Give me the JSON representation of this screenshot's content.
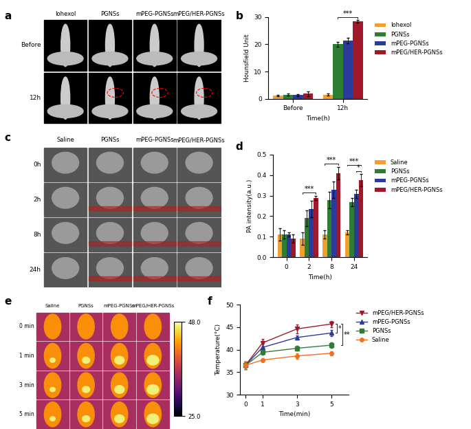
{
  "chart_data": [
    {
      "panel": "b",
      "type": "bar",
      "y_label": "Hounsfield Unit",
      "x_label": "Time(h)",
      "categories": [
        "Before",
        "12h"
      ],
      "series": [
        {
          "name": "Iohexol",
          "color": "#f0a030",
          "values": [
            1.2,
            1.5
          ],
          "errors": [
            0.3,
            0.3
          ]
        },
        {
          "name": "PGNSs",
          "color": "#2e7d32",
          "values": [
            1.5,
            20.0
          ],
          "errors": [
            0.4,
            1.0
          ]
        },
        {
          "name": "mPEG-PGNSs",
          "color": "#2a3b9a",
          "values": [
            1.3,
            21.5
          ],
          "errors": [
            0.3,
            1.0
          ]
        },
        {
          "name": "mPEG/HER-PGNSs",
          "color": "#a0192a",
          "values": [
            1.8,
            28.5
          ],
          "errors": [
            0.8,
            0.5
          ]
        }
      ],
      "ylim": [
        0,
        30
      ],
      "yticks": [
        0,
        10,
        20,
        30
      ],
      "legend": "right",
      "annotations": [
        {
          "text": "***",
          "category": "12h",
          "from": "PGNSs",
          "to": "mPEG/HER-PGNSs"
        }
      ]
    },
    {
      "panel": "d",
      "type": "bar",
      "y_label": "PA intensity(a.u.)",
      "x_label": "Time(h)",
      "categories": [
        "0",
        "2",
        "8",
        "24"
      ],
      "series": [
        {
          "name": "Saline",
          "color": "#f0a030",
          "values": [
            0.11,
            0.09,
            0.11,
            0.12
          ],
          "errors": [
            0.03,
            0.03,
            0.02,
            0.01
          ]
        },
        {
          "name": "PGNSs",
          "color": "#2e7d32",
          "values": [
            0.11,
            0.19,
            0.28,
            0.27
          ],
          "errors": [
            0.02,
            0.04,
            0.04,
            0.02
          ]
        },
        {
          "name": "mPEG-PGNSs",
          "color": "#2a3b9a",
          "values": [
            0.11,
            0.235,
            0.33,
            0.31
          ],
          "errors": [
            0.01,
            0.04,
            0.04,
            0.02
          ]
        },
        {
          "name": "mPEG/HER-PGNSs",
          "color": "#a0192a",
          "values": [
            0.09,
            0.29,
            0.41,
            0.375
          ],
          "errors": [
            0.02,
            0.01,
            0.03,
            0.03
          ]
        }
      ],
      "ylim": [
        0,
        0.5
      ],
      "yticks": [
        {
          "value": 0,
          "label": "0.0"
        },
        0.1,
        0.2,
        0.3,
        0.4,
        0.5
      ],
      "legend": "right",
      "annotations": [
        {
          "text": "***",
          "category": "2",
          "from": "Saline",
          "to": "mPEG/HER-PGNSs"
        },
        {
          "text": "***",
          "category": "8",
          "from": "Saline",
          "to": "mPEG/HER-PGNSs"
        },
        {
          "text": "*",
          "category": "24",
          "from": "mPEG-PGNSs",
          "to": "mPEG/HER-PGNSs"
        },
        {
          "text": "***",
          "category": "24",
          "from": "Saline",
          "to": "mPEG/HER-PGNSs"
        }
      ]
    },
    {
      "panel": "f",
      "type": "line",
      "y_label": "Temperature(°C)",
      "x_label": "Time(min)",
      "x": [
        0,
        1,
        3,
        5
      ],
      "series": [
        {
          "name": "mPEG/HER-PGNSs",
          "color": "#a0192a",
          "marker": "triangle_down",
          "values": [
            36.5,
            41.5,
            44.6,
            45.7
          ],
          "errors": [
            0.8,
            0.8,
            1.0,
            0.7
          ]
        },
        {
          "name": "mPEG-PGNSs",
          "color": "#2a3b9a",
          "marker": "triangle_up",
          "values": [
            36.5,
            40.5,
            42.7,
            43.7
          ],
          "errors": [
            0.8,
            0.8,
            0.5,
            0.7
          ]
        },
        {
          "name": "PGNSs",
          "color": "#2e7d32",
          "marker": "square",
          "values": [
            36.5,
            39.4,
            40.3,
            41.0
          ],
          "errors": [
            0.8,
            0.6,
            0.5,
            0.6
          ]
        },
        {
          "name": "Saline",
          "color": "#f07020",
          "marker": "circle",
          "values": [
            36.5,
            37.7,
            38.6,
            39.2
          ],
          "errors": [
            0.8,
            0.4,
            0.6,
            0.5
          ]
        }
      ],
      "xlim": [
        -0.3,
        6
      ],
      "xticks": [
        0,
        1,
        3,
        5
      ],
      "ylim": [
        30,
        50
      ],
      "yticks": [
        30,
        35,
        40,
        45,
        50
      ],
      "legend": "right",
      "annotations": [
        {
          "text": "*",
          "x": 5,
          "from": "mPEG/HER-PGNSs",
          "to": "mPEG-PGNSs"
        },
        {
          "text": "**",
          "x": 5,
          "from": "mPEG/HER-PGNSs",
          "to": "PGNSs"
        }
      ]
    }
  ],
  "image_panels": [
    {
      "panel": "a",
      "columns": [
        "Iohexol",
        "PGNSs",
        "mPEG-PGNSs",
        "mPEG/HER-PGNSs"
      ],
      "rows": [
        "Before",
        "12h"
      ]
    },
    {
      "panel": "c",
      "columns": [
        "Saline",
        "PGNSs",
        "mPEG-PGNSs",
        "mPEG/HER-PGNSs"
      ],
      "rows": [
        "0h",
        "2h",
        "8h",
        "24h"
      ]
    },
    {
      "panel": "e",
      "columns": [
        "Saline",
        "PGNSs",
        "mPEG-PGNSs",
        "mPEG/HER-PGNSs"
      ],
      "rows": [
        "0 min",
        "1 min",
        "3 min",
        "5 min"
      ],
      "colorbar": {
        "range": [
          25,
          48
        ],
        "ticks": [
          {
            "value": 48,
            "label": "48.0"
          },
          {
            "value": 25,
            "label": "25.0"
          }
        ]
      }
    }
  ]
}
